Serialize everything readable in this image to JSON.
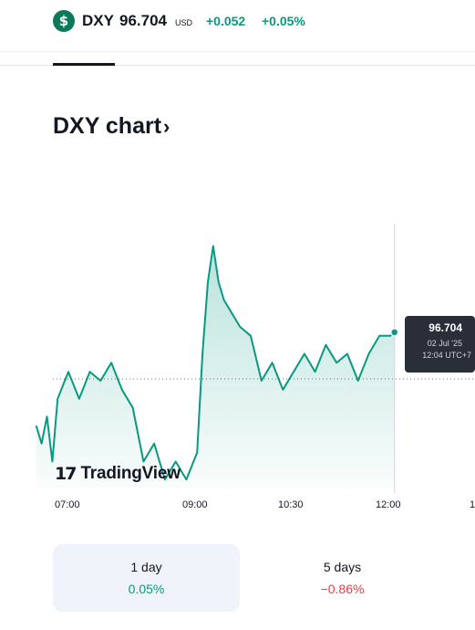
{
  "header": {
    "symbol_icon": "$",
    "symbol": "DXY",
    "price": "96.704",
    "currency": "USD",
    "change": "+0.052",
    "change_percent": "+0.05%"
  },
  "chart_title": "DXY chart",
  "tooltip": {
    "value": "96.704",
    "date": "02 Jul '25",
    "time": "12:04 UTC+7"
  },
  "brand": {
    "mark": "17",
    "name": "TradingView"
  },
  "x_axis_labels": [
    "07:00",
    "09:00",
    "10:30",
    "12:00",
    "1"
  ],
  "ranges": [
    {
      "label": "1 day",
      "value": "0.05%",
      "trend": "up",
      "active": true
    },
    {
      "label": "5 days",
      "value": "−0.86%",
      "trend": "down",
      "active": false
    }
  ],
  "colors": {
    "up": "#089981",
    "down": "#f23645",
    "line": "#089981",
    "tooltip_bg": "#2a2e39"
  },
  "chart_data": {
    "type": "area",
    "x": [
      "06:30",
      "06:35",
      "06:40",
      "06:45",
      "06:50",
      "07:00",
      "07:10",
      "07:20",
      "07:30",
      "07:40",
      "07:50",
      "08:00",
      "08:10",
      "08:20",
      "08:30",
      "08:40",
      "08:50",
      "09:00",
      "09:05",
      "09:10",
      "09:15",
      "09:20",
      "09:25",
      "09:30",
      "09:40",
      "09:50",
      "10:00",
      "10:10",
      "10:20",
      "10:30",
      "10:40",
      "10:50",
      "11:00",
      "11:10",
      "11:20",
      "11:30",
      "11:40",
      "11:50",
      "12:00",
      "12:04"
    ],
    "values": [
      96.6,
      96.58,
      96.61,
      96.56,
      96.63,
      96.66,
      96.63,
      96.66,
      96.65,
      96.67,
      96.64,
      96.62,
      96.56,
      96.58,
      96.54,
      96.56,
      96.54,
      96.57,
      96.68,
      96.76,
      96.8,
      96.76,
      96.74,
      96.73,
      96.71,
      96.7,
      96.65,
      96.67,
      96.64,
      96.66,
      96.68,
      96.66,
      96.69,
      96.67,
      96.68,
      96.65,
      96.68,
      96.7,
      96.7,
      96.704
    ],
    "previous_close": 96.652,
    "ylim": [
      96.53,
      96.83
    ]
  }
}
